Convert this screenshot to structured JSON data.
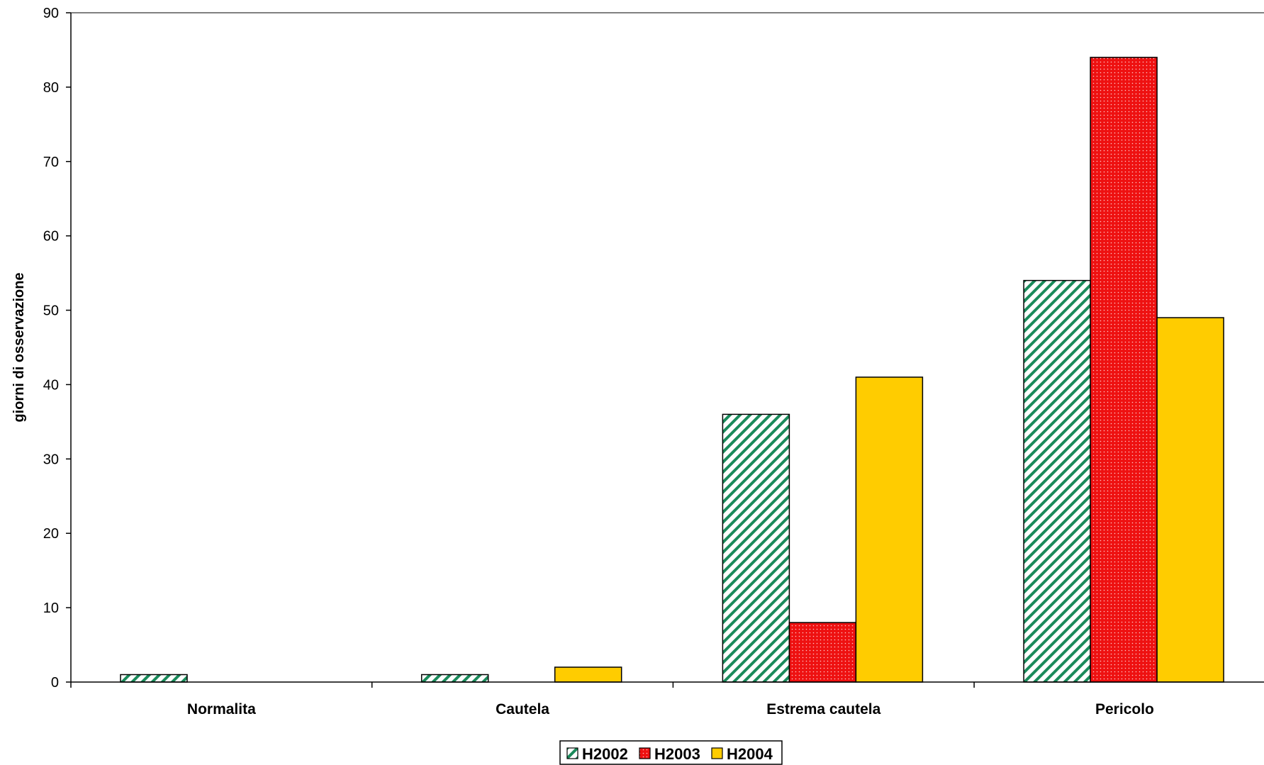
{
  "chart_data": {
    "type": "bar",
    "categories": [
      "Normalita",
      "Cautela",
      "Estrema cautela",
      "Pericolo"
    ],
    "series": [
      {
        "name": "H2002",
        "values": [
          1,
          1,
          36,
          54
        ],
        "color": "#1a8a5a",
        "pattern": "diagonal-hatch"
      },
      {
        "name": "H2003",
        "values": [
          0,
          0,
          8,
          84
        ],
        "color": "#ee1111",
        "pattern": "dotted"
      },
      {
        "name": "H2004",
        "values": [
          0,
          2,
          41,
          49
        ],
        "color": "#ffcc00",
        "pattern": "solid"
      }
    ],
    "title": "",
    "xlabel": "",
    "ylabel": "giorni di osservazione",
    "ylim": [
      0,
      90
    ],
    "yticks": [
      0,
      10,
      20,
      30,
      40,
      50,
      60,
      70,
      80,
      90
    ],
    "grid": false,
    "legend_position": "bottom-center"
  }
}
